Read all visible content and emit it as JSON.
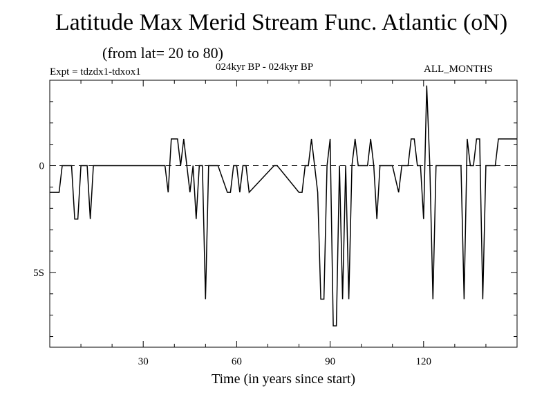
{
  "header": {
    "title": "Latitude Max Merid Stream Func. Atlantic (oN)",
    "subtitle": "(from lat= 20 to 80)",
    "experiment": "Expt = tdzdx1-tdxox1",
    "period": "024kyr BP - 024kyr BP",
    "months": "ALL_MONTHS"
  },
  "chart_data": {
    "type": "line",
    "title": "Latitude Max Merid Stream Func. Atlantic (oN)",
    "subtitle": "(from lat= 20 to 80)",
    "xlabel": "Time (in years since start)",
    "ylabel": "",
    "xlim": [
      0,
      150
    ],
    "ylim": [
      -8.5,
      4
    ],
    "x_ticks": [
      30,
      60,
      90,
      120
    ],
    "x_tick_labels": [
      "30",
      "60",
      "90",
      "120"
    ],
    "y_ticks": [
      0,
      -5
    ],
    "y_tick_labels": [
      "0",
      "5S"
    ],
    "zero_line": "dashed",
    "grid": false,
    "series": [
      {
        "name": "Latitude Max Merid Stream Func.",
        "color": "#000000",
        "x": [
          0,
          3,
          4,
          7,
          8,
          9,
          10,
          11,
          12,
          13,
          14,
          15,
          30,
          37,
          38,
          39,
          41,
          42,
          43,
          44,
          45,
          46,
          47,
          48,
          49,
          50,
          51,
          52,
          53,
          54,
          57,
          58,
          59,
          60,
          61,
          62,
          63,
          64,
          72,
          73,
          80,
          81,
          82,
          83,
          84,
          85,
          86,
          87,
          88,
          89,
          90,
          91,
          92,
          93,
          94,
          95,
          96,
          97,
          98,
          99,
          100,
          102,
          103,
          104,
          105,
          106,
          107,
          108,
          109,
          110,
          112,
          113,
          114,
          115,
          116,
          117,
          118,
          119,
          120,
          121,
          122,
          123,
          124,
          125,
          126,
          127,
          129,
          130,
          131,
          132,
          133,
          134,
          135,
          136,
          137,
          138,
          139,
          140,
          141,
          142,
          143,
          144,
          147,
          148,
          150
        ],
        "y": [
          -1.25,
          -1.25,
          0,
          0,
          -2.5,
          -2.5,
          0,
          0,
          0,
          -2.5,
          0,
          0,
          0,
          0,
          -1.25,
          1.25,
          1.25,
          0,
          1.25,
          0,
          -1.25,
          0,
          -2.5,
          0,
          0,
          -6.25,
          0,
          0,
          0,
          0,
          -1.25,
          -1.25,
          0,
          0,
          -1.25,
          0,
          0,
          -1.25,
          0,
          0,
          -1.25,
          -1.25,
          0,
          0,
          1.25,
          0,
          -1.25,
          -6.25,
          -6.25,
          0,
          1.25,
          -7.5,
          -7.5,
          0,
          -6.25,
          0,
          -6.25,
          0,
          1.25,
          0,
          0,
          0,
          1.25,
          0,
          -2.5,
          0,
          0,
          0,
          0,
          0,
          -1.25,
          0,
          0,
          0,
          1.25,
          1.25,
          0,
          0,
          -2.5,
          3.75,
          0,
          -6.25,
          0,
          0,
          0,
          0,
          0,
          0,
          0,
          0,
          -6.25,
          1.25,
          0,
          0,
          1.25,
          1.25,
          -6.25,
          0,
          0,
          0,
          0,
          1.25,
          1.25,
          1.25,
          1.25
        ]
      }
    ]
  }
}
